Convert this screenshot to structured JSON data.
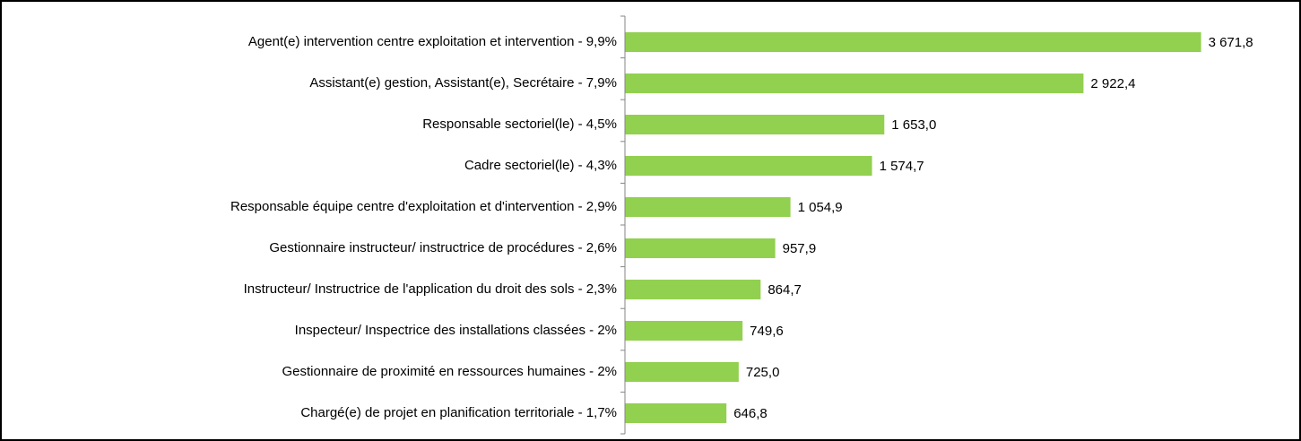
{
  "chart_data": {
    "type": "hbar",
    "categories": [
      "Agent(e) intervention centre exploitation et intervention - 9,9%",
      "Assistant(e) gestion, Assistant(e), Secrétaire - 7,9%",
      "Responsable sectoriel(le) - 4,5%",
      "Cadre sectoriel(le) - 4,3%",
      "Responsable équipe centre d'exploitation et d'intervention - 2,9%",
      "Gestionnaire instructeur/ instructrice de procédures - 2,6%",
      "Instructeur/ Instructrice de l'application du droit des sols - 2,3%",
      "Inspecteur/ Inspectrice des installations classées - 2%",
      "Gestionnaire de proximité en ressources humaines - 2%",
      "Chargé(e) de projet en planification territoriale - 1,7%"
    ],
    "values": [
      3671.8,
      2922.4,
      1653.0,
      1574.7,
      1054.9,
      957.9,
      864.7,
      749.6,
      725.0,
      646.8
    ],
    "value_labels": [
      "3 671,8",
      "2 922,4",
      "1 653,0",
      "1 574,7",
      "1 054,9",
      "957,9",
      "864,7",
      "749,6",
      "725,0",
      "646,8"
    ],
    "color": "#92d050",
    "xlim": [
      0,
      4200
    ]
  }
}
